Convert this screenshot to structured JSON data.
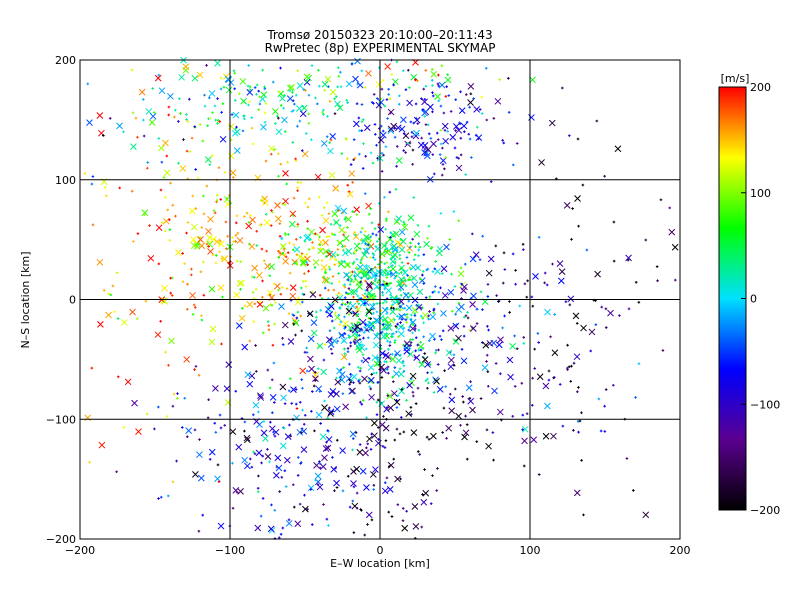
{
  "chart_data": {
    "type": "scatter",
    "title": "Tromsø 20150323 20:10:00–20:11:43",
    "subtitle": "RwPretec (8p) EXPERIMENTAL SKYMAP",
    "xlabel": "E–W location [km]",
    "ylabel": "N–S location [km]",
    "xlim": [
      -200,
      200
    ],
    "ylim": [
      -200,
      200
    ],
    "x_ticks": [
      -200,
      -100,
      0,
      100,
      200
    ],
    "y_ticks": [
      -200,
      -100,
      0,
      100,
      200
    ],
    "x_tick_labels": [
      "−200",
      "−100",
      "0",
      "100",
      "200"
    ],
    "y_tick_labels": [
      "−200",
      "−100",
      "0",
      "100",
      "200"
    ],
    "grid": true,
    "colorbar": {
      "label": "[m/s]",
      "range": [
        -200,
        200
      ],
      "ticks": [
        200,
        100,
        0,
        -100,
        -200
      ],
      "tick_labels": [
        "200",
        "100",
        "0",
        "−100",
        "−200"
      ],
      "colormap": [
        "#000000",
        "#5a0090",
        "#0000ff",
        "#00e0ff",
        "#00ff00",
        "#ffff00",
        "#ff0000"
      ]
    },
    "marker_types": [
      "+",
      "x"
    ],
    "clusters": [
      {
        "cx": -60,
        "cy": 160,
        "sx": 45,
        "sy": 22,
        "v_mean": 20,
        "v_sd": 45,
        "n": 160
      },
      {
        "cx": 30,
        "cy": 145,
        "sx": 28,
        "sy": 22,
        "v_mean": -90,
        "v_sd": 45,
        "n": 170
      },
      {
        "cx": -80,
        "cy": 55,
        "sx": 40,
        "sy": 45,
        "v_mean": 150,
        "v_sd": 40,
        "n": 280
      },
      {
        "cx": -25,
        "cy": 30,
        "sx": 30,
        "sy": 25,
        "v_mean": 90,
        "v_sd": 50,
        "n": 220
      },
      {
        "cx": 5,
        "cy": 0,
        "sx": 18,
        "sy": 40,
        "v_mean": 20,
        "v_sd": 35,
        "n": 420
      },
      {
        "cx": -25,
        "cy": -30,
        "sx": 28,
        "sy": 25,
        "v_mean": -40,
        "v_sd": 80,
        "n": 180
      },
      {
        "cx": 40,
        "cy": -20,
        "sx": 35,
        "sy": 35,
        "v_mean": -70,
        "v_sd": 60,
        "n": 150
      },
      {
        "cx": -60,
        "cy": -130,
        "sx": 35,
        "sy": 35,
        "v_mean": -80,
        "v_sd": 50,
        "n": 220
      },
      {
        "cx": 15,
        "cy": -120,
        "sx": 35,
        "sy": 50,
        "v_mean": -170,
        "v_sd": 40,
        "n": 150
      },
      {
        "cx": 140,
        "cy": 20,
        "sx": 45,
        "sy": 90,
        "v_mean": -190,
        "v_sd": 40,
        "n": 80
      },
      {
        "cx": -150,
        "cy": 20,
        "sx": 35,
        "sy": 90,
        "v_mean": 170,
        "v_sd": 50,
        "n": 110
      },
      {
        "cx": 110,
        "cy": -40,
        "sx": 35,
        "sy": 45,
        "v_mean": -110,
        "v_sd": 50,
        "n": 70
      },
      {
        "cx": 0,
        "cy": 185,
        "sx": 45,
        "sy": 12,
        "v_mean": 60,
        "v_sd": 80,
        "n": 60
      },
      {
        "cx": -130,
        "cy": 150,
        "sx": 40,
        "sy": 30,
        "v_mean": -20,
        "v_sd": 90,
        "n": 40
      }
    ]
  }
}
